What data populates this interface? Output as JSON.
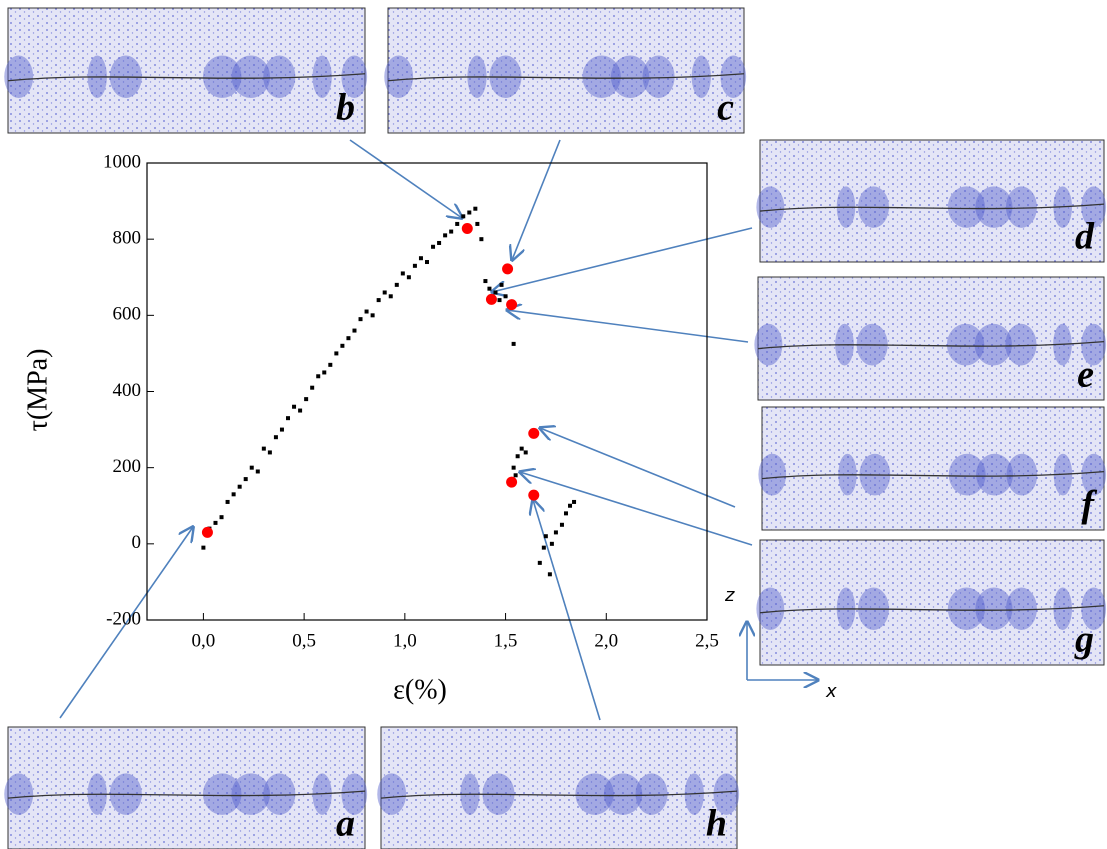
{
  "chart_data": {
    "type": "scatter",
    "x_label": "ε(%)",
    "y_label": "τ(MPa)",
    "xlim": [
      -0.28,
      2.5
    ],
    "xticks": [
      {
        "value": 0,
        "label": "0,0"
      },
      {
        "value": 0.5,
        "label": "0,5"
      },
      {
        "value": 1,
        "label": "1,0"
      },
      {
        "value": 1.5,
        "label": "1,5"
      },
      {
        "value": 2,
        "label": "2,0"
      },
      {
        "value": 2.5,
        "label": "2,5"
      }
    ],
    "ylim": [
      -200,
      1000
    ],
    "yticks": [
      -200,
      0,
      200,
      400,
      600,
      800,
      1000
    ],
    "series": [
      {
        "color": "#000000",
        "x": [
          0.0,
          0.03,
          0.06,
          0.09,
          0.12,
          0.15,
          0.18,
          0.21,
          0.24,
          0.27,
          0.3,
          0.33,
          0.36,
          0.39,
          0.42,
          0.45,
          0.48,
          0.51,
          0.54,
          0.57,
          0.6,
          0.63,
          0.66,
          0.69,
          0.72,
          0.75,
          0.78,
          0.81,
          0.84,
          0.87,
          0.9,
          0.93,
          0.96,
          0.99,
          1.02,
          1.05,
          1.08,
          1.11,
          1.14,
          1.17,
          1.2,
          1.23,
          1.26,
          1.29,
          1.32,
          1.35,
          1.38,
          1.36,
          1.4,
          1.42,
          1.45,
          1.48,
          1.5,
          1.47,
          1.54,
          1.54,
          1.56,
          1.58,
          1.6,
          1.55,
          1.7,
          1.67,
          1.72,
          1.75,
          1.78,
          1.8,
          1.82,
          1.84,
          1.69,
          1.73
        ],
        "values": [
          -10,
          40,
          55,
          70,
          110,
          130,
          150,
          170,
          200,
          190,
          250,
          240,
          280,
          300,
          330,
          360,
          350,
          380,
          410,
          440,
          450,
          470,
          500,
          520,
          540,
          560,
          590,
          610,
          600,
          640,
          660,
          650,
          680,
          710,
          700,
          730,
          750,
          740,
          780,
          790,
          810,
          820,
          840,
          860,
          870,
          880,
          800,
          840,
          690,
          670,
          660,
          680,
          650,
          640,
          525,
          200,
          230,
          250,
          240,
          180,
          20,
          -50,
          -80,
          30,
          50,
          80,
          100,
          110,
          -10,
          0
        ]
      },
      {
        "color": "#ff0000",
        "x": [
          0.02,
          1.31,
          1.51,
          1.43,
          1.53,
          1.64,
          1.53,
          1.64
        ],
        "values": [
          30,
          828,
          722,
          642,
          628,
          290,
          162,
          128
        ]
      }
    ],
    "panel_labels": [
      "a",
      "b",
      "c",
      "d",
      "e",
      "f",
      "g",
      "h"
    ],
    "axis_symbols": [
      "z",
      "x"
    ]
  }
}
